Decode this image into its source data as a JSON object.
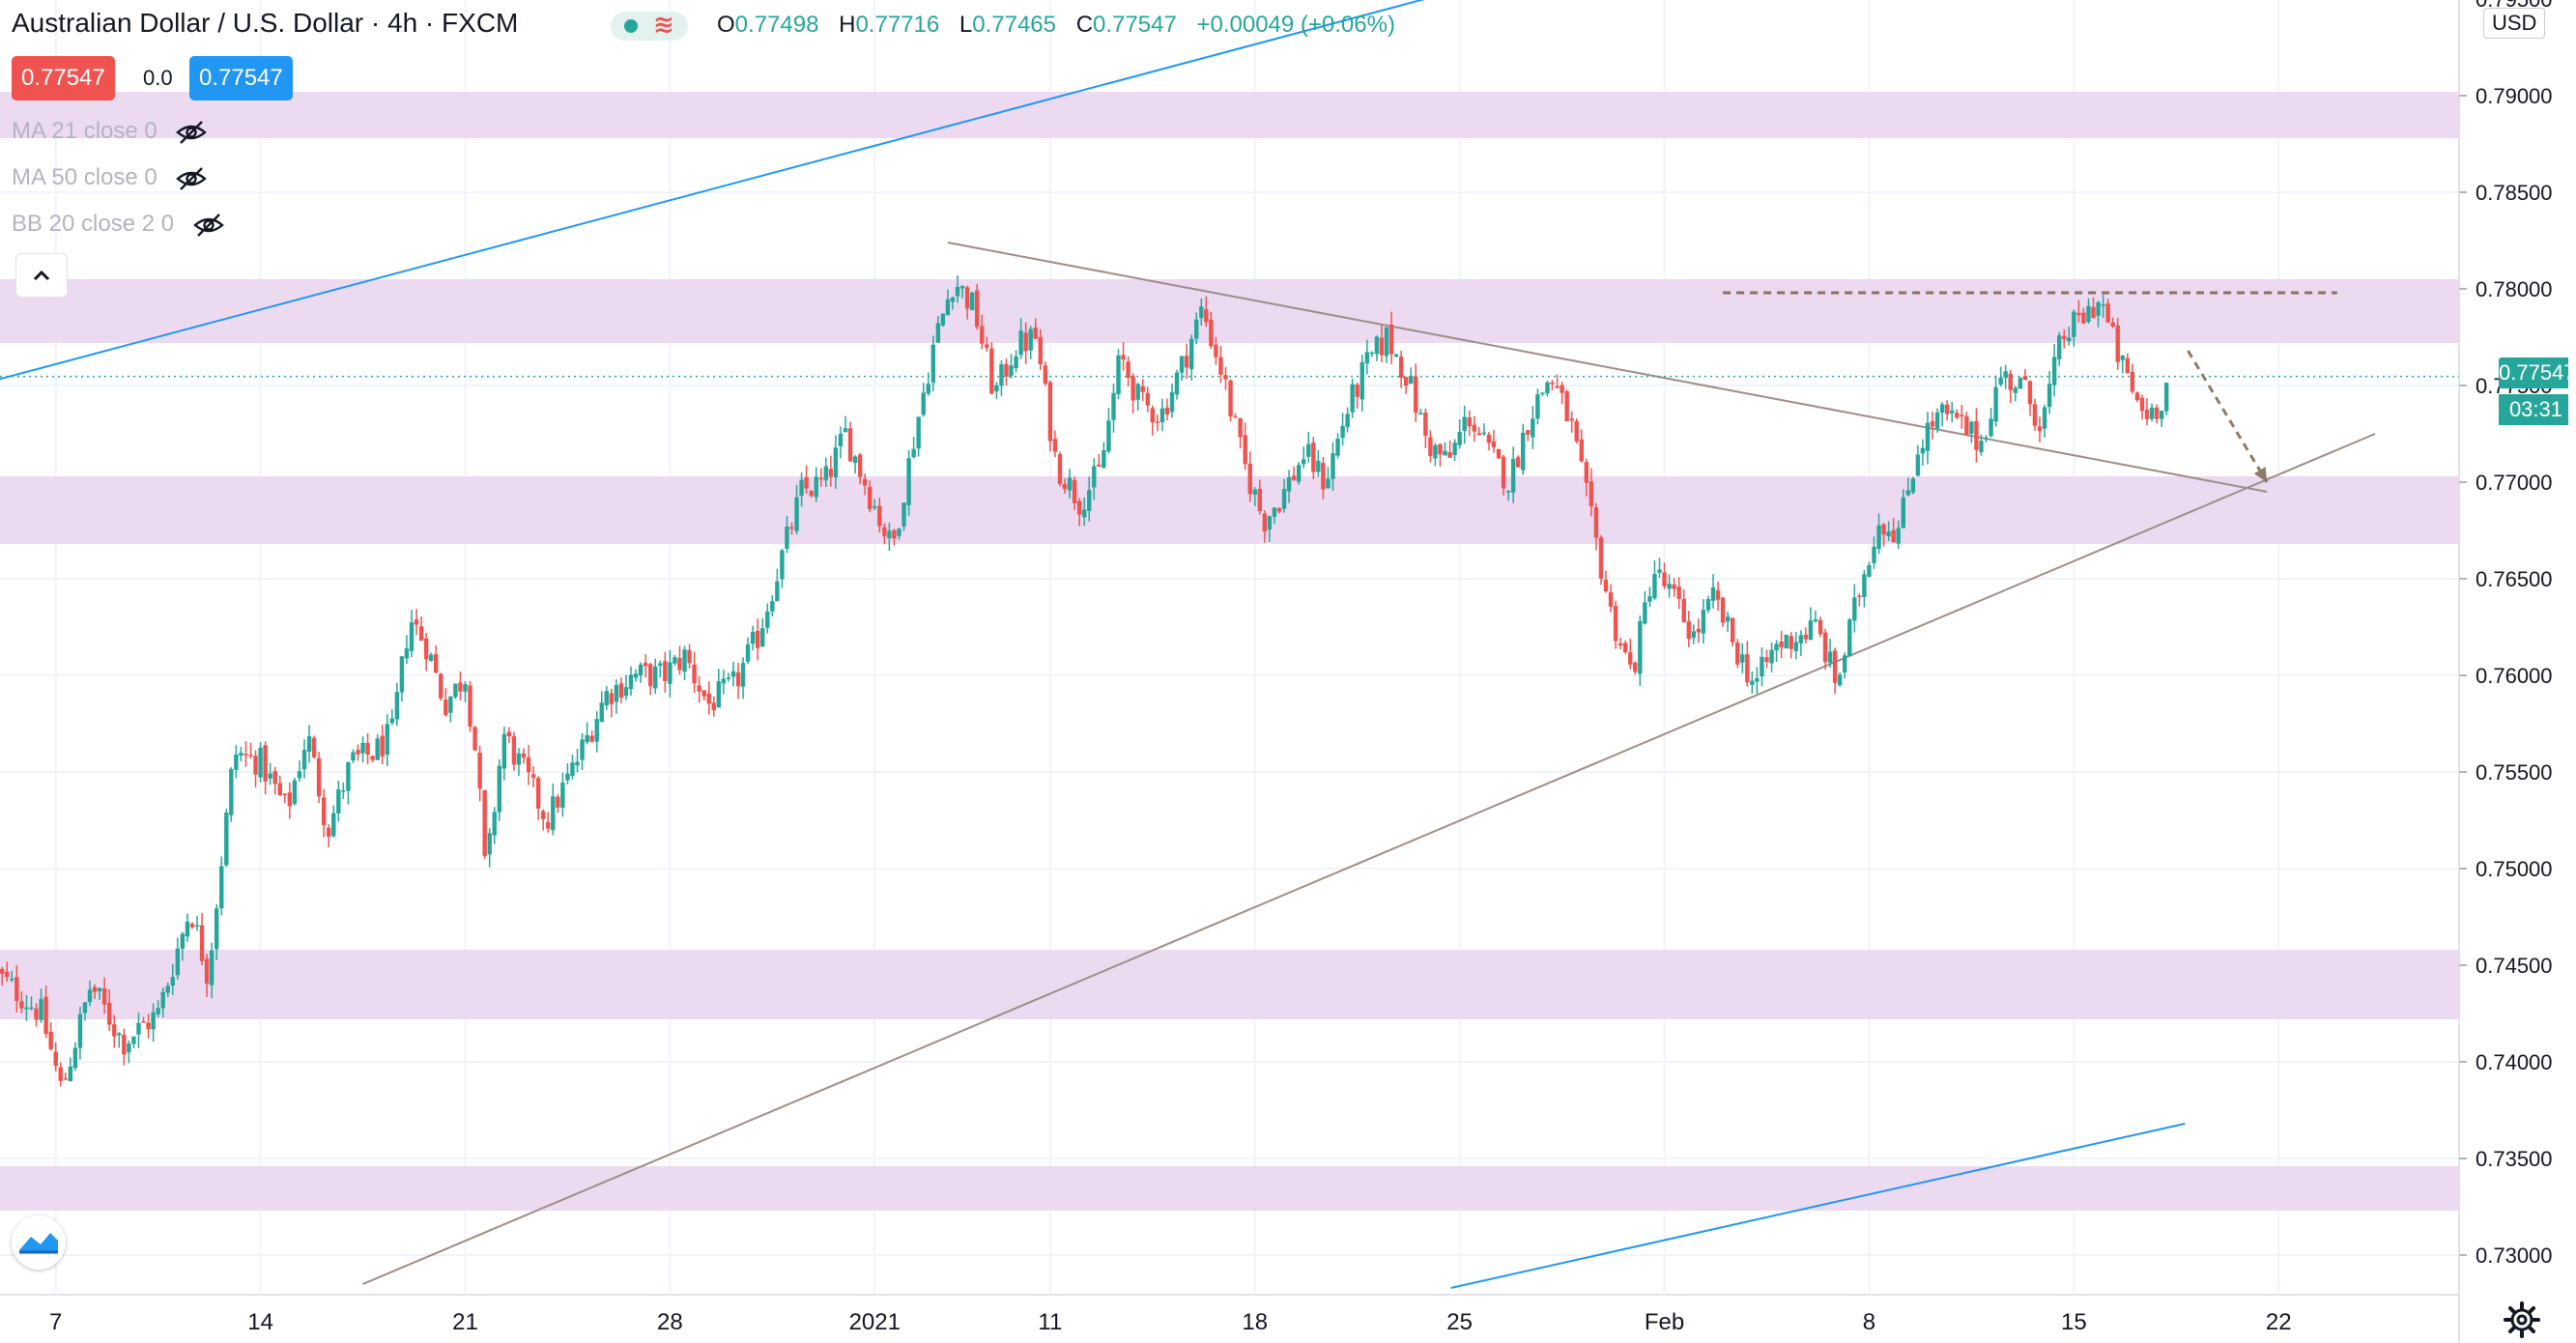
{
  "header": {
    "symbol_title": "Australian Dollar / U.S. Dollar · 4h · FXCM",
    "ohlc": {
      "open_label": "O",
      "open": "0.77498",
      "high_label": "H",
      "high": "0.77716",
      "low_label": "L",
      "low": "0.77465",
      "close_label": "C",
      "close": "0.77547",
      "change": "+0.00049 (+0.06%)"
    },
    "sell_price": "0.77547",
    "spread": "0.0",
    "buy_price": "0.77547"
  },
  "indicators": [
    {
      "label": "MA 21 close 0",
      "icon": "eye-crossed-icon"
    },
    {
      "label": "MA 50 close 0",
      "icon": "eye-crossed-icon"
    },
    {
      "label": "BB 20 close 2 0",
      "icon": "eye-crossed-icon"
    }
  ],
  "price_scale": {
    "currency": "USD",
    "last_price": "0.77547",
    "countdown": "03:31"
  },
  "colors": {
    "up": "#26a69a",
    "down": "#ef5350",
    "zone": "#e9d4ef",
    "channel": "#2196f3",
    "trendline": "#9e8e88",
    "projection": "#8d7b6a",
    "resistance_dashed": "#8d6e63",
    "last_price_line": "#26a69a"
  },
  "chart_data": {
    "type": "candlestick",
    "title": "Australian Dollar / U.S. Dollar · 4h · FXCM",
    "xlabel": "",
    "ylabel": "",
    "ylim": [
      0.7285,
      0.7955
    ],
    "y_ticks": [
      "0.73000",
      "0.73500",
      "0.74000",
      "0.74500",
      "0.75000",
      "0.75500",
      "0.76000",
      "0.76500",
      "0.77000",
      "0.77500",
      "0.78000",
      "0.78500",
      "0.79000",
      "0.79500"
    ],
    "x_ticks": [
      {
        "label": "7",
        "day": 7
      },
      {
        "label": "14",
        "day": 14
      },
      {
        "label": "21",
        "day": 21
      },
      {
        "label": "28",
        "day": 28
      },
      {
        "label": "2021",
        "day": 35
      },
      {
        "label": "11",
        "day": 41
      },
      {
        "label": "18",
        "day": 48
      },
      {
        "label": "25",
        "day": 55
      },
      {
        "label": "Feb",
        "day": 62
      },
      {
        "label": "8",
        "day": 69
      },
      {
        "label": "15",
        "day": 76
      },
      {
        "label": "22",
        "day": 83
      }
    ],
    "grid": true,
    "price_path": [
      {
        "day": 5.0,
        "price": 0.7445
      },
      {
        "day": 6.5,
        "price": 0.7425
      },
      {
        "day": 7.2,
        "price": 0.7385
      },
      {
        "day": 8.2,
        "price": 0.744
      },
      {
        "day": 9.3,
        "price": 0.741
      },
      {
        "day": 10.5,
        "price": 0.7425
      },
      {
        "day": 11.6,
        "price": 0.748
      },
      {
        "day": 12.2,
        "price": 0.7445
      },
      {
        "day": 13.1,
        "price": 0.756
      },
      {
        "day": 14.0,
        "price": 0.7555
      },
      {
        "day": 14.9,
        "price": 0.753
      },
      {
        "day": 15.6,
        "price": 0.757
      },
      {
        "day": 16.3,
        "price": 0.752
      },
      {
        "day": 17.1,
        "price": 0.7555
      },
      {
        "day": 17.9,
        "price": 0.756
      },
      {
        "day": 18.5,
        "price": 0.757
      },
      {
        "day": 19.1,
        "price": 0.763
      },
      {
        "day": 19.7,
        "price": 0.7615
      },
      {
        "day": 20.3,
        "price": 0.7585
      },
      {
        "day": 21.0,
        "price": 0.76
      },
      {
        "day": 21.4,
        "price": 0.7555
      },
      {
        "day": 21.7,
        "price": 0.7495
      },
      {
        "day": 22.3,
        "price": 0.757
      },
      {
        "day": 23.0,
        "price": 0.755
      },
      {
        "day": 23.8,
        "price": 0.7525
      },
      {
        "day": 24.8,
        "price": 0.7555
      },
      {
        "day": 25.8,
        "price": 0.759
      },
      {
        "day": 26.8,
        "price": 0.76
      },
      {
        "day": 27.8,
        "price": 0.76
      },
      {
        "day": 28.5,
        "price": 0.761
      },
      {
        "day": 29.3,
        "price": 0.7585
      },
      {
        "day": 30.2,
        "price": 0.7595
      },
      {
        "day": 31.0,
        "price": 0.762
      },
      {
        "day": 31.8,
        "price": 0.766
      },
      {
        "day": 32.5,
        "price": 0.7695
      },
      {
        "day": 33.3,
        "price": 0.77
      },
      {
        "day": 34.0,
        "price": 0.7725
      },
      {
        "day": 34.8,
        "price": 0.7695
      },
      {
        "day": 35.6,
        "price": 0.7665
      },
      {
        "day": 36.3,
        "price": 0.772
      },
      {
        "day": 37.0,
        "price": 0.777
      },
      {
        "day": 37.7,
        "price": 0.7805
      },
      {
        "day": 38.4,
        "price": 0.779
      },
      {
        "day": 39.1,
        "price": 0.7745
      },
      {
        "day": 39.8,
        "price": 0.777
      },
      {
        "day": 40.5,
        "price": 0.7775
      },
      {
        "day": 41.2,
        "price": 0.771
      },
      {
        "day": 42.0,
        "price": 0.769
      },
      {
        "day": 42.7,
        "price": 0.7705
      },
      {
        "day": 43.4,
        "price": 0.7765
      },
      {
        "day": 44.1,
        "price": 0.774
      },
      {
        "day": 44.8,
        "price": 0.7735
      },
      {
        "day": 45.5,
        "price": 0.776
      },
      {
        "day": 46.2,
        "price": 0.779
      },
      {
        "day": 46.9,
        "price": 0.7755
      },
      {
        "day": 47.6,
        "price": 0.771
      },
      {
        "day": 48.3,
        "price": 0.768
      },
      {
        "day": 49.0,
        "price": 0.7695
      },
      {
        "day": 49.7,
        "price": 0.7715
      },
      {
        "day": 50.4,
        "price": 0.77
      },
      {
        "day": 51.1,
        "price": 0.7735
      },
      {
        "day": 51.8,
        "price": 0.776
      },
      {
        "day": 52.5,
        "price": 0.7775
      },
      {
        "day": 53.2,
        "price": 0.7755
      },
      {
        "day": 53.9,
        "price": 0.772
      },
      {
        "day": 54.6,
        "price": 0.771
      },
      {
        "day": 55.3,
        "price": 0.7735
      },
      {
        "day": 56.0,
        "price": 0.7715
      },
      {
        "day": 56.7,
        "price": 0.77
      },
      {
        "day": 57.4,
        "price": 0.7735
      },
      {
        "day": 58.1,
        "price": 0.7755
      },
      {
        "day": 58.8,
        "price": 0.773
      },
      {
        "day": 59.5,
        "price": 0.768
      },
      {
        "day": 60.2,
        "price": 0.763
      },
      {
        "day": 60.9,
        "price": 0.76
      },
      {
        "day": 61.6,
        "price": 0.7655
      },
      {
        "day": 62.3,
        "price": 0.764
      },
      {
        "day": 63.0,
        "price": 0.762
      },
      {
        "day": 63.7,
        "price": 0.764
      },
      {
        "day": 64.4,
        "price": 0.7615
      },
      {
        "day": 65.1,
        "price": 0.7595
      },
      {
        "day": 65.8,
        "price": 0.7615
      },
      {
        "day": 66.5,
        "price": 0.762
      },
      {
        "day": 67.2,
        "price": 0.7625
      },
      {
        "day": 67.9,
        "price": 0.7595
      },
      {
        "day": 68.6,
        "price": 0.764
      },
      {
        "day": 69.3,
        "price": 0.768
      },
      {
        "day": 70.0,
        "price": 0.7675
      },
      {
        "day": 70.7,
        "price": 0.772
      },
      {
        "day": 71.4,
        "price": 0.7735
      },
      {
        "day": 72.1,
        "price": 0.773
      },
      {
        "day": 72.8,
        "price": 0.772
      },
      {
        "day": 73.5,
        "price": 0.7755
      },
      {
        "day": 74.2,
        "price": 0.775
      },
      {
        "day": 74.9,
        "price": 0.773
      },
      {
        "day": 75.6,
        "price": 0.7775
      },
      {
        "day": 76.3,
        "price": 0.7785
      },
      {
        "day": 76.9,
        "price": 0.7795
      },
      {
        "day": 77.4,
        "price": 0.777
      },
      {
        "day": 77.9,
        "price": 0.775
      },
      {
        "day": 78.4,
        "price": 0.7735
      },
      {
        "day": 78.9,
        "price": 0.774
      },
      {
        "day": 79.3,
        "price": 0.7755
      }
    ],
    "zones": [
      {
        "from": 0.7878,
        "to": 0.7902
      },
      {
        "from": 0.7772,
        "to": 0.7805
      },
      {
        "from": 0.7668,
        "to": 0.7703
      },
      {
        "from": 0.7422,
        "to": 0.7458
      },
      {
        "from": 0.7323,
        "to": 0.7346
      }
    ],
    "lines": [
      {
        "name": "upper-channel",
        "style": "solid",
        "p1": {
          "day": 5.0,
          "price": 0.7753
        },
        "p2": {
          "day": 60.0,
          "price": 0.7975
        }
      },
      {
        "name": "lower-channel",
        "style": "solid",
        "p1": {
          "day": 54.7,
          "price": 0.7283
        },
        "p2": {
          "day": 79.8,
          "price": 0.7368
        }
      },
      {
        "name": "descending-trendline",
        "style": "solid",
        "p1": {
          "day": 37.5,
          "price": 0.7824
        },
        "p2": {
          "day": 82.6,
          "price": 0.7695
        }
      },
      {
        "name": "ascending-support",
        "style": "solid",
        "p1": {
          "day": 17.5,
          "price": 0.7285
        },
        "p2": {
          "day": 86.3,
          "price": 0.7725
        }
      },
      {
        "name": "resistance",
        "style": "dashed",
        "p1": {
          "day": 64.0,
          "price": 0.7798
        },
        "p2": {
          "day": 85.0,
          "price": 0.7798
        }
      },
      {
        "name": "projection-arrow",
        "style": "dashed-arrow",
        "p1": {
          "day": 79.9,
          "price": 0.7768
        },
        "p2": {
          "day": 82.6,
          "price": 0.77
        }
      }
    ],
    "last_price": 0.77547
  }
}
